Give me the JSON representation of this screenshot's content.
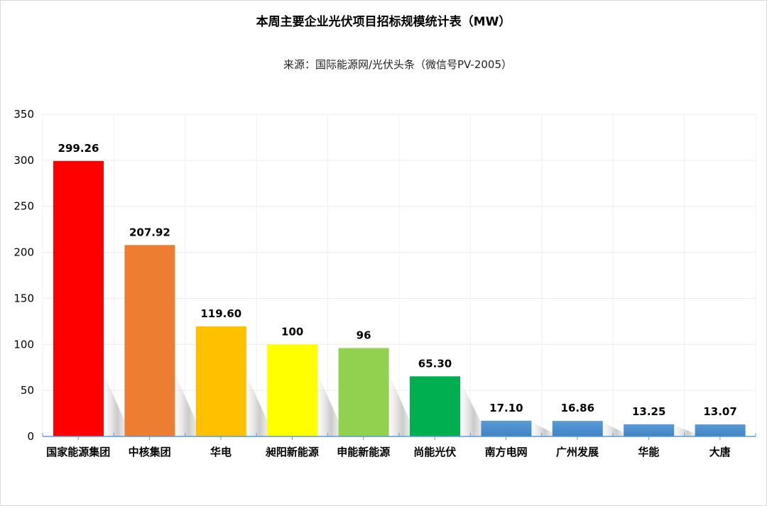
{
  "chart_data": {
    "type": "bar",
    "title": "本周主要企业光伏项目招标规模统计表（MW）",
    "subtitle": "来源：国际能源网/光伏头条（微信号PV-2005）",
    "xlabel": "",
    "ylabel": "",
    "ylim": [
      0,
      350
    ],
    "yticks": [
      0,
      50,
      100,
      150,
      200,
      250,
      300,
      350
    ],
    "grid": true,
    "categories": [
      "国家能源集团",
      "中核集团",
      "华电",
      "昶阳新能源",
      "申能新能源",
      "尚能光伏",
      "南方电网",
      "广州发展",
      "华能",
      "大唐"
    ],
    "values": [
      299.26,
      207.92,
      119.6,
      100,
      96,
      65.3,
      17.1,
      16.86,
      13.25,
      13.07
    ],
    "data_labels": [
      "299.26",
      "207.92",
      "119.60",
      "100",
      "96",
      "65.30",
      "17.10",
      "16.86",
      "13.25",
      "13.07"
    ],
    "colors": [
      "#ff0000",
      "#ed7d31",
      "#ffc000",
      "#ffff00",
      "#92d050",
      "#00b050",
      "#5b9bd5",
      "#5b9bd5",
      "#5b9bd5",
      "#5b9bd5"
    ]
  }
}
